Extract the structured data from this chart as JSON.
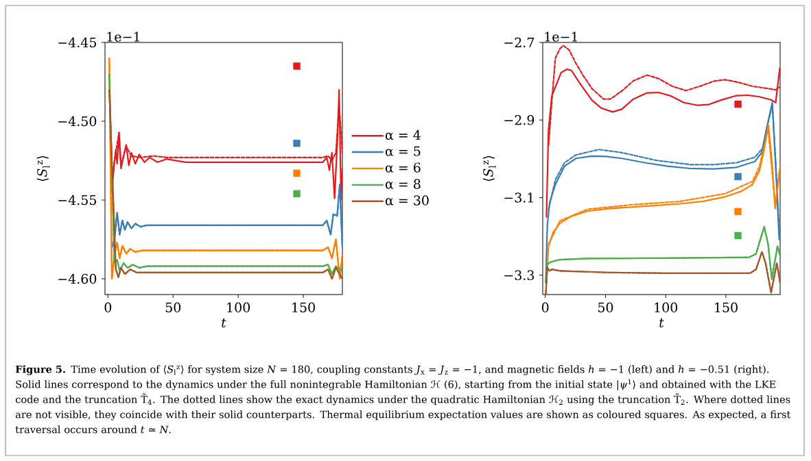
{
  "chart_data": [
    {
      "type": "line",
      "xlabel": "t",
      "ylabel": "⟨*S*$_{l}$$^{z}$⟩",
      "xlim": [
        -2.3,
        180
      ],
      "ylim": [
        -4.61,
        -4.45
      ],
      "xticks": [
        0,
        50,
        100,
        150
      ],
      "yticks": [
        {
          "value": -4.45,
          "label": "−4.45"
        },
        {
          "value": -4.5,
          "label": "−4.50"
        },
        {
          "value": -4.55,
          "label": "−4.55"
        },
        {
          "value": -4.6,
          "label": "−4.60"
        }
      ],
      "legend": "right",
      "annotations": [
        "1e−1",
        "**Figure 5.** Time evolution of ⟨*S*$_{l}$$^{z}$⟩ for system size *N* = 180, coupling constants *J*$_{x}$ = *J*$_{z}$ = −1, and magnetic fields *h* = −1 (left) and *h* = −0.51 (right). Solid lines correspond to the dynamics under the full nonintegrable Hamiltonian ℋ (6), starting from the initial state |*ψ*$^{1}$⟩ and obtained with the LKE code and the truncation T̃$_{4}$. The dotted lines show the exact dynamics under the quadratic Hamiltonian ℋ$_{2}$ using the truncation T̃$_{2}$. Where dotted lines are not visible, they coincide with their solid counterparts. Thermal equilibrium expectation values are shown as coloured squares. As expected, a first traversal occurs around *t* ≃ *N*."
      ],
      "series": [
        {
          "name": "α = 4",
          "line_style": "solid",
          "color": "#e41a1c",
          "x": [
            3,
            4.5,
            6,
            7,
            8.5,
            10,
            12,
            14,
            16,
            18,
            21,
            24,
            28,
            32,
            38,
            45,
            60,
            100,
            165,
            168,
            170,
            172,
            174,
            176,
            177.5,
            179,
            180
          ],
          "values": [
            -4.545,
            -4.53,
            -4.518,
            -4.527,
            -4.508,
            -4.53,
            -4.522,
            -4.515,
            -4.528,
            -4.52,
            -4.527,
            -4.521,
            -4.526,
            -4.523,
            -4.526,
            -4.524,
            -4.526,
            -4.526,
            -4.526,
            -4.523,
            -4.531,
            -4.52,
            -4.549,
            -4.515,
            -4.48,
            -4.55,
            -4.53
          ]
        },
        {
          "line_style": "dashed",
          "color": "#e41a1c",
          "x": [
            3,
            5,
            8.5,
            10,
            14,
            18,
            25,
            35,
            45,
            100,
            165,
            169,
            172,
            175,
            177.5,
            180
          ],
          "values": [
            -4.54,
            -4.525,
            -4.507,
            -4.528,
            -4.516,
            -4.522,
            -4.523,
            -4.522,
            -4.523,
            -4.523,
            -4.523,
            -4.522,
            -4.525,
            -4.52,
            -4.49,
            -4.52
          ]
        },
        {
          "name": "α = 5",
          "line_style": "solid",
          "color": "#377eb8",
          "x": [
            3,
            5,
            7,
            9,
            11,
            13,
            15,
            18,
            21,
            25,
            30,
            40,
            165,
            168,
            171,
            173,
            176,
            178,
            180
          ],
          "values": [
            -4.58,
            -4.575,
            -4.558,
            -4.572,
            -4.563,
            -4.569,
            -4.564,
            -4.568,
            -4.565,
            -4.567,
            -4.566,
            -4.566,
            -4.566,
            -4.563,
            -4.572,
            -4.559,
            -4.56,
            -4.54,
            -4.58
          ]
        },
        {
          "line_style": "dashed",
          "color": "#377eb8",
          "x": [
            3,
            5,
            7,
            9,
            11,
            13,
            15,
            18,
            21,
            25,
            30,
            40,
            165,
            168,
            171,
            173,
            176,
            178,
            180
          ],
          "values": [
            -4.58,
            -4.575,
            -4.558,
            -4.572,
            -4.563,
            -4.569,
            -4.564,
            -4.568,
            -4.565,
            -4.567,
            -4.566,
            -4.566,
            -4.566,
            -4.563,
            -4.572,
            -4.559,
            -4.56,
            -4.54,
            -4.58
          ]
        },
        {
          "name": "α = 6",
          "line_style": "solid",
          "color": "#ff7f00",
          "x": [
            1,
            3,
            5,
            7,
            9,
            11,
            14,
            17,
            21,
            26,
            35,
            165,
            169,
            172,
            175,
            178,
            180
          ],
          "values": [
            -4.46,
            -4.6,
            -4.585,
            -4.577,
            -4.587,
            -4.579,
            -4.584,
            -4.581,
            -4.583,
            -4.582,
            -4.582,
            -4.582,
            -4.58,
            -4.587,
            -4.575,
            -4.6,
            -4.585
          ]
        },
        {
          "line_style": "dashed",
          "color": "#ff7f00",
          "x": [
            1,
            3,
            5,
            7,
            9,
            11,
            14,
            17,
            21,
            26,
            35,
            165,
            169,
            172,
            175,
            178,
            180
          ],
          "values": [
            -4.46,
            -4.6,
            -4.585,
            -4.577,
            -4.587,
            -4.579,
            -4.584,
            -4.581,
            -4.583,
            -4.582,
            -4.582,
            -4.582,
            -4.58,
            -4.587,
            -4.575,
            -4.6,
            -4.585
          ]
        },
        {
          "name": "α = 8",
          "line_style": "solid",
          "color": "#4daf4a",
          "x": [
            1,
            3,
            5,
            7,
            9,
            12,
            15,
            19,
            24,
            30,
            165,
            169,
            172,
            175,
            178,
            180
          ],
          "values": [
            -4.47,
            null,
            -4.59,
            -4.588,
            -4.595,
            -4.59,
            -4.593,
            -4.591,
            -4.593,
            -4.592,
            -4.592,
            -4.591,
            -4.597,
            -4.592,
            null,
            -4.595
          ]
        },
        {
          "line_style": "dashed",
          "color": "#4daf4a",
          "x": [
            1,
            3,
            5,
            7,
            9,
            12,
            15,
            19,
            24,
            30,
            165,
            169,
            172,
            175,
            178,
            180
          ],
          "values": [
            -4.47,
            null,
            -4.59,
            -4.588,
            -4.595,
            -4.59,
            -4.593,
            -4.591,
            -4.593,
            -4.592,
            -4.592,
            -4.591,
            -4.597,
            -4.592,
            null,
            -4.595
          ]
        },
        {
          "name": "α = 30",
          "line_style": "solid",
          "color": "#a65628",
          "x": [
            1,
            3.5,
            6,
            8,
            10,
            13,
            17,
            22,
            30,
            165,
            169,
            172,
            175,
            178,
            180
          ],
          "values": [
            -4.48,
            null,
            -4.594,
            -4.599,
            -4.593,
            -4.597,
            -4.594,
            -4.596,
            -4.596,
            -4.596,
            -4.594,
            -4.6,
            -4.593,
            null,
            -4.6
          ]
        },
        {
          "line_style": "dashed",
          "color": "#a65628",
          "x": [
            1,
            3.5,
            6,
            8,
            10,
            13,
            17,
            22,
            30,
            165,
            169,
            172,
            175,
            178,
            180
          ],
          "values": [
            -4.48,
            null,
            -4.594,
            -4.599,
            -4.593,
            -4.597,
            -4.594,
            -4.596,
            -4.596,
            -4.596,
            -4.594,
            -4.6,
            -4.593,
            null,
            -4.6
          ]
        },
        {
          "type": "scatter",
          "marker": "square",
          "color": "#e41a1c",
          "x": [
            145
          ],
          "values": [
            -4.465
          ]
        },
        {
          "type": "scatter",
          "marker": "square",
          "color": "#377eb8",
          "x": [
            145
          ],
          "values": [
            -4.514
          ]
        },
        {
          "type": "scatter",
          "marker": "square",
          "color": "#ff7f00",
          "x": [
            145
          ],
          "values": [
            -4.533
          ]
        },
        {
          "type": "scatter",
          "marker": "square",
          "color": "#4daf4a",
          "x": [
            145
          ],
          "values": [
            -4.546
          ]
        }
      ]
    },
    {
      "type": "line",
      "xlabel": "t",
      "ylabel": "⟨*S*$_{l}$$^{z}$⟩",
      "xlim": [
        -2.1,
        195
      ],
      "ylim": [
        -3.35,
        -2.7
      ],
      "xticks": [
        0,
        50,
        100,
        150
      ],
      "yticks": [
        {
          "value": -2.7,
          "label": "−2.7"
        },
        {
          "value": -2.9,
          "label": "−2.9"
        },
        {
          "value": -3.1,
          "label": "−3.1"
        },
        {
          "value": -3.3,
          "label": "−3.3"
        }
      ],
      "annotations": [
        "1e−1"
      ],
      "series": [
        {
          "line_style": "solid",
          "color": "#e41a1c",
          "x": [
            1,
            1.7,
            2.7,
            5.5,
            9.3,
            13.1,
            17.9,
            21.7,
            29.3,
            38.8,
            46.4,
            56,
            63.6,
            73.1,
            84.5,
            94,
            103.6,
            115,
            126.4,
            135.9,
            145.4,
            158.8,
            168.5,
            177.8,
            187.5,
            191.3,
            194.7
          ],
          "values": [
            -3.15,
            -3.054,
            -2.925,
            -2.837,
            -2.808,
            -2.778,
            -2.769,
            -2.772,
            -2.808,
            -2.849,
            -2.869,
            -2.879,
            -2.872,
            -2.846,
            -2.83,
            -2.829,
            -2.837,
            -2.855,
            -2.862,
            -2.86,
            -2.849,
            -2.837,
            -2.836,
            -2.84,
            -2.848,
            -2.855,
            -2.766
          ]
        },
        {
          "line_style": "dashed",
          "color": "#e41a1c",
          "x": [
            2.7,
            5.5,
            8.4,
            12.2,
            15,
            19.8,
            24.6,
            31.2,
            38.8,
            48.4,
            54,
            63.6,
            73.1,
            84.5,
            94,
            105.5,
            116.9,
            128.3,
            139.7,
            149.2,
            160.7,
            172.1,
            183.5,
            191.3,
            194.7
          ],
          "values": [
            -2.966,
            -2.849,
            -2.74,
            -2.716,
            -2.708,
            -2.719,
            -2.749,
            -2.784,
            -2.819,
            -2.846,
            -2.846,
            -2.825,
            -2.799,
            -2.784,
            -2.793,
            -2.813,
            -2.824,
            -2.813,
            -2.8,
            -2.796,
            -2.803,
            -2.813,
            -2.818,
            -2.822,
            -2.815
          ]
        },
        {
          "line_style": "solid",
          "color": "#377eb8",
          "x": [
            0.4,
            1.7,
            3.6,
            8.4,
            16,
            25.5,
            38.8,
            50.3,
            63.6,
            82.6,
            101.7,
            120.7,
            139.7,
            158.8,
            174,
            179.7,
            183.5,
            188.5,
            191,
            194.2,
            195
          ],
          "values": [
            -3.319,
            -3.172,
            -3.113,
            -3.066,
            -3.019,
            -2.999,
            -2.993,
            -2.994,
            -2.999,
            -3.01,
            -3.019,
            -3.025,
            -3.026,
            -3.022,
            -3.007,
            -2.984,
            -2.925,
            -2.855,
            -3.0,
            -3.207,
            -3.21
          ]
        },
        {
          "line_style": "dashed",
          "color": "#377eb8",
          "x": [
            2.7,
            8.4,
            16,
            25.5,
            44.5,
            63.6,
            92.1,
            120.7,
            139.7,
            158.8,
            174,
            180.7,
            184,
            188.5,
            191.5,
            194.5
          ],
          "values": [
            -3.131,
            -3.054,
            -3.01,
            -2.99,
            -2.976,
            -2.984,
            -3.004,
            -3.015,
            -3.015,
            -3.01,
            -2.996,
            -2.972,
            -2.92,
            -2.86,
            -3.02,
            -3.2
          ]
        },
        {
          "line_style": "solid",
          "color": "#ff7f00",
          "x": [
            0.8,
            2.7,
            6.5,
            12.2,
            21.7,
            35,
            54,
            73.1,
            92.1,
            111.2,
            130.2,
            149.2,
            162.6,
            172.1,
            177.8,
            181.6,
            185.2,
            188,
            190.9,
            194.7
          ],
          "values": [
            -3.319,
            -3.225,
            -3.19,
            -3.166,
            -3.148,
            -3.135,
            -3.128,
            -3.124,
            -3.12,
            -3.116,
            -3.11,
            -3.098,
            -3.084,
            -3.066,
            -3.031,
            -2.978,
            -2.913,
            -3.0,
            -3.128,
            -3.025
          ]
        },
        {
          "line_style": "dashed",
          "color": "#ff7f00",
          "x": [
            2.7,
            12.2,
            35,
            73.1,
            111.2,
            149.2,
            172.1,
            177.8,
            181.6,
            185,
            190.9,
            194.7
          ],
          "values": [
            -3.22,
            -3.16,
            -3.13,
            -3.118,
            -3.11,
            -3.09,
            -3.058,
            -3.02,
            -2.97,
            -2.92,
            -3.12,
            -3.03
          ]
        },
        {
          "line_style": "solid",
          "color": "#4daf4a",
          "x": [
            0.4,
            1.7,
            4.6,
            12.2,
            35,
            100,
            169.4,
            175,
            181.8,
            185,
            188.1,
            192.8,
            195
          ],
          "values": [
            -3.319,
            -3.272,
            -3.266,
            -3.26,
            -3.257,
            -3.256,
            -3.254,
            -3.245,
            -3.175,
            -3.22,
            -3.31,
            -3.225,
            -3.25
          ]
        },
        {
          "line_style": "dashed",
          "color": "#4daf4a",
          "x": [
            0.4,
            1.7,
            4.6,
            12.2,
            35,
            100,
            169.4,
            175,
            181.8,
            185,
            188.1,
            192.8,
            195
          ],
          "values": [
            -3.319,
            -3.272,
            -3.266,
            -3.26,
            -3.257,
            -3.256,
            -3.254,
            -3.245,
            -3.175,
            -3.22,
            -3.31,
            -3.225,
            -3.25
          ]
        },
        {
          "line_style": "solid",
          "color": "#a65628",
          "x": [
            0.4,
            1.7,
            3.6,
            5.5,
            12.2,
            50,
            100,
            170,
            175,
            179.9,
            183,
            187.5,
            192.3,
            195
          ],
          "values": [
            -3.348,
            -3.281,
            -3.289,
            -3.285,
            -3.289,
            -3.293,
            -3.295,
            -3.295,
            -3.285,
            -3.24,
            -3.27,
            -3.345,
            -3.269,
            -3.32
          ]
        },
        {
          "line_style": "dashed",
          "color": "#a65628",
          "x": [
            0.4,
            1.7,
            3.6,
            5.5,
            12.2,
            50,
            100,
            170,
            175,
            179.9,
            183,
            187.5,
            192.3,
            195
          ],
          "values": [
            -3.348,
            -3.281,
            -3.289,
            -3.285,
            -3.289,
            -3.293,
            -3.295,
            -3.295,
            -3.285,
            -3.24,
            -3.27,
            -3.345,
            -3.269,
            -3.32
          ]
        },
        {
          "type": "scatter",
          "marker": "square",
          "color": "#e41a1c",
          "x": [
            160
          ],
          "values": [
            -2.859
          ]
        },
        {
          "type": "scatter",
          "marker": "square",
          "color": "#377eb8",
          "x": [
            160
          ],
          "values": [
            -3.046
          ]
        },
        {
          "type": "scatter",
          "marker": "square",
          "color": "#ff7f00",
          "x": [
            160
          ],
          "values": [
            -3.136
          ]
        },
        {
          "type": "scatter",
          "marker": "square",
          "color": "#4daf4a",
          "x": [
            160
          ],
          "values": [
            -3.198
          ]
        }
      ]
    }
  ]
}
